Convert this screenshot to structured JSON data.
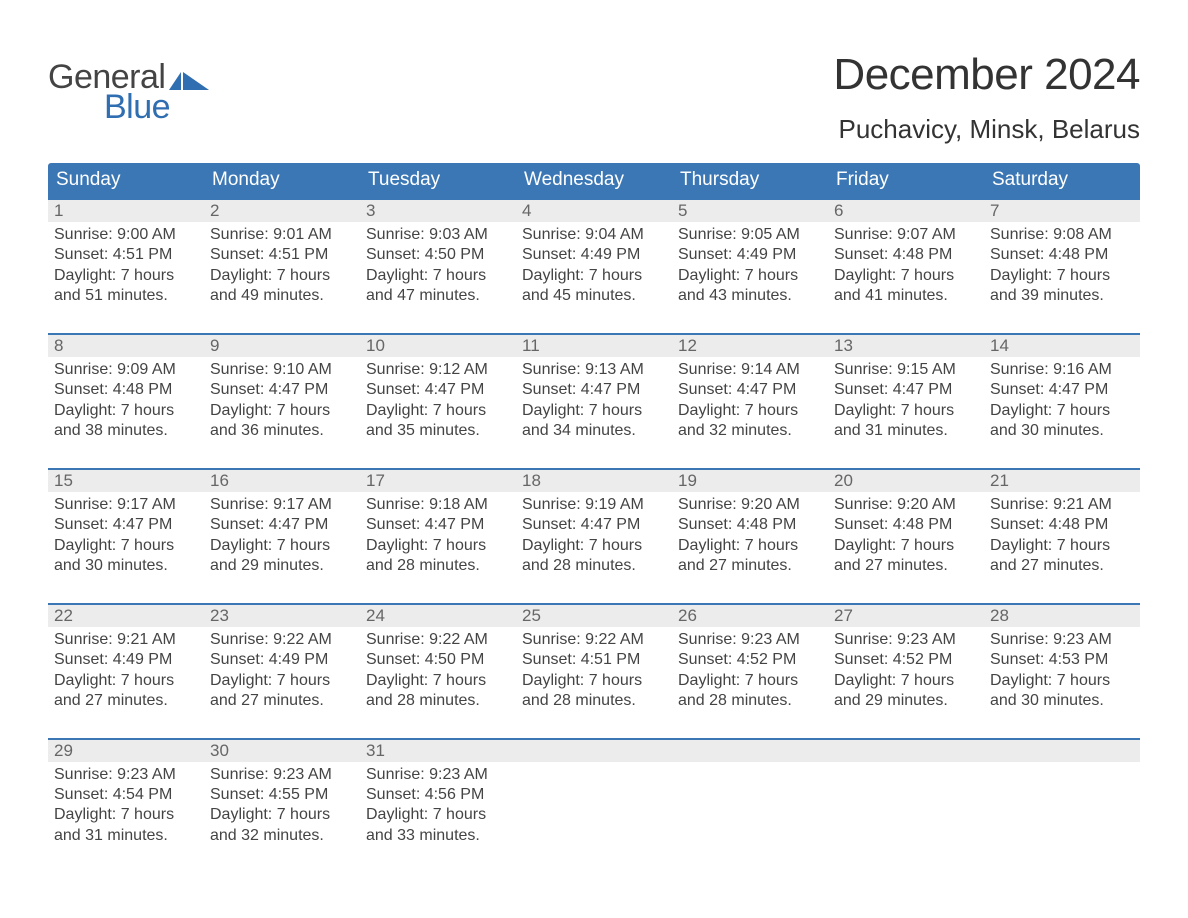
{
  "colors": {
    "header_blue": "#3b77b5",
    "row_border": "#3b77b5",
    "daynum_bg": "#ececec",
    "daynum_text": "#666666",
    "body_text": "#444444",
    "logo_blue": "#2f6eb0",
    "background": "#ffffff"
  },
  "fonts": {
    "title_month_size": 44,
    "location_size": 26,
    "day_header_size": 19,
    "daynum_size": 17,
    "cell_size": 16,
    "logo_size": 34
  },
  "logo": {
    "line1": "General",
    "line2": "Blue"
  },
  "title": {
    "month": "December 2024",
    "location": "Puchavicy, Minsk, Belarus"
  },
  "day_headers": [
    "Sunday",
    "Monday",
    "Tuesday",
    "Wednesday",
    "Thursday",
    "Friday",
    "Saturday"
  ],
  "weeks": [
    [
      {
        "n": "1",
        "sr": "Sunrise: 9:00 AM",
        "ss": "Sunset: 4:51 PM",
        "d1": "Daylight: 7 hours",
        "d2": "and 51 minutes."
      },
      {
        "n": "2",
        "sr": "Sunrise: 9:01 AM",
        "ss": "Sunset: 4:51 PM",
        "d1": "Daylight: 7 hours",
        "d2": "and 49 minutes."
      },
      {
        "n": "3",
        "sr": "Sunrise: 9:03 AM",
        "ss": "Sunset: 4:50 PM",
        "d1": "Daylight: 7 hours",
        "d2": "and 47 minutes."
      },
      {
        "n": "4",
        "sr": "Sunrise: 9:04 AM",
        "ss": "Sunset: 4:49 PM",
        "d1": "Daylight: 7 hours",
        "d2": "and 45 minutes."
      },
      {
        "n": "5",
        "sr": "Sunrise: 9:05 AM",
        "ss": "Sunset: 4:49 PM",
        "d1": "Daylight: 7 hours",
        "d2": "and 43 minutes."
      },
      {
        "n": "6",
        "sr": "Sunrise: 9:07 AM",
        "ss": "Sunset: 4:48 PM",
        "d1": "Daylight: 7 hours",
        "d2": "and 41 minutes."
      },
      {
        "n": "7",
        "sr": "Sunrise: 9:08 AM",
        "ss": "Sunset: 4:48 PM",
        "d1": "Daylight: 7 hours",
        "d2": "and 39 minutes."
      }
    ],
    [
      {
        "n": "8",
        "sr": "Sunrise: 9:09 AM",
        "ss": "Sunset: 4:48 PM",
        "d1": "Daylight: 7 hours",
        "d2": "and 38 minutes."
      },
      {
        "n": "9",
        "sr": "Sunrise: 9:10 AM",
        "ss": "Sunset: 4:47 PM",
        "d1": "Daylight: 7 hours",
        "d2": "and 36 minutes."
      },
      {
        "n": "10",
        "sr": "Sunrise: 9:12 AM",
        "ss": "Sunset: 4:47 PM",
        "d1": "Daylight: 7 hours",
        "d2": "and 35 minutes."
      },
      {
        "n": "11",
        "sr": "Sunrise: 9:13 AM",
        "ss": "Sunset: 4:47 PM",
        "d1": "Daylight: 7 hours",
        "d2": "and 34 minutes."
      },
      {
        "n": "12",
        "sr": "Sunrise: 9:14 AM",
        "ss": "Sunset: 4:47 PM",
        "d1": "Daylight: 7 hours",
        "d2": "and 32 minutes."
      },
      {
        "n": "13",
        "sr": "Sunrise: 9:15 AM",
        "ss": "Sunset: 4:47 PM",
        "d1": "Daylight: 7 hours",
        "d2": "and 31 minutes."
      },
      {
        "n": "14",
        "sr": "Sunrise: 9:16 AM",
        "ss": "Sunset: 4:47 PM",
        "d1": "Daylight: 7 hours",
        "d2": "and 30 minutes."
      }
    ],
    [
      {
        "n": "15",
        "sr": "Sunrise: 9:17 AM",
        "ss": "Sunset: 4:47 PM",
        "d1": "Daylight: 7 hours",
        "d2": "and 30 minutes."
      },
      {
        "n": "16",
        "sr": "Sunrise: 9:17 AM",
        "ss": "Sunset: 4:47 PM",
        "d1": "Daylight: 7 hours",
        "d2": "and 29 minutes."
      },
      {
        "n": "17",
        "sr": "Sunrise: 9:18 AM",
        "ss": "Sunset: 4:47 PM",
        "d1": "Daylight: 7 hours",
        "d2": "and 28 minutes."
      },
      {
        "n": "18",
        "sr": "Sunrise: 9:19 AM",
        "ss": "Sunset: 4:47 PM",
        "d1": "Daylight: 7 hours",
        "d2": "and 28 minutes."
      },
      {
        "n": "19",
        "sr": "Sunrise: 9:20 AM",
        "ss": "Sunset: 4:48 PM",
        "d1": "Daylight: 7 hours",
        "d2": "and 27 minutes."
      },
      {
        "n": "20",
        "sr": "Sunrise: 9:20 AM",
        "ss": "Sunset: 4:48 PM",
        "d1": "Daylight: 7 hours",
        "d2": "and 27 minutes."
      },
      {
        "n": "21",
        "sr": "Sunrise: 9:21 AM",
        "ss": "Sunset: 4:48 PM",
        "d1": "Daylight: 7 hours",
        "d2": "and 27 minutes."
      }
    ],
    [
      {
        "n": "22",
        "sr": "Sunrise: 9:21 AM",
        "ss": "Sunset: 4:49 PM",
        "d1": "Daylight: 7 hours",
        "d2": "and 27 minutes."
      },
      {
        "n": "23",
        "sr": "Sunrise: 9:22 AM",
        "ss": "Sunset: 4:49 PM",
        "d1": "Daylight: 7 hours",
        "d2": "and 27 minutes."
      },
      {
        "n": "24",
        "sr": "Sunrise: 9:22 AM",
        "ss": "Sunset: 4:50 PM",
        "d1": "Daylight: 7 hours",
        "d2": "and 28 minutes."
      },
      {
        "n": "25",
        "sr": "Sunrise: 9:22 AM",
        "ss": "Sunset: 4:51 PM",
        "d1": "Daylight: 7 hours",
        "d2": "and 28 minutes."
      },
      {
        "n": "26",
        "sr": "Sunrise: 9:23 AM",
        "ss": "Sunset: 4:52 PM",
        "d1": "Daylight: 7 hours",
        "d2": "and 28 minutes."
      },
      {
        "n": "27",
        "sr": "Sunrise: 9:23 AM",
        "ss": "Sunset: 4:52 PM",
        "d1": "Daylight: 7 hours",
        "d2": "and 29 minutes."
      },
      {
        "n": "28",
        "sr": "Sunrise: 9:23 AM",
        "ss": "Sunset: 4:53 PM",
        "d1": "Daylight: 7 hours",
        "d2": "and 30 minutes."
      }
    ],
    [
      {
        "n": "29",
        "sr": "Sunrise: 9:23 AM",
        "ss": "Sunset: 4:54 PM",
        "d1": "Daylight: 7 hours",
        "d2": "and 31 minutes."
      },
      {
        "n": "30",
        "sr": "Sunrise: 9:23 AM",
        "ss": "Sunset: 4:55 PM",
        "d1": "Daylight: 7 hours",
        "d2": "and 32 minutes."
      },
      {
        "n": "31",
        "sr": "Sunrise: 9:23 AM",
        "ss": "Sunset: 4:56 PM",
        "d1": "Daylight: 7 hours",
        "d2": "and 33 minutes."
      },
      null,
      null,
      null,
      null
    ]
  ]
}
